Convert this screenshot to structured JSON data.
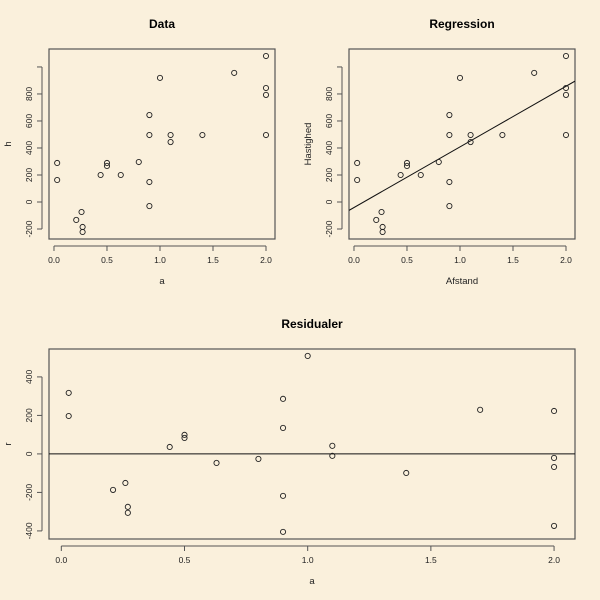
{
  "chart_data": [
    {
      "type": "scatter",
      "title": "Data",
      "xlabel": "a",
      "ylabel": "h",
      "xlim": [
        -0.047,
        2.085
      ],
      "ylim": [
        -274,
        1133
      ],
      "xticks": [
        0,
        0.5,
        1,
        1.5,
        2
      ],
      "xtick_labels": [
        "0.0",
        "0.5",
        "1.0",
        "1.5",
        "2.0"
      ],
      "yticks": [
        -200,
        0,
        200,
        400,
        600,
        800,
        1000
      ],
      "ytick_labels": [
        "-200",
        "0",
        "200",
        "400",
        "600",
        "800",
        ""
      ],
      "x": [
        0.03,
        0.03,
        0.26,
        0.21,
        0.27,
        0.27,
        0.44,
        0.5,
        0.5,
        0.63,
        0.8,
        0.9,
        0.9,
        0.9,
        0.9,
        1.0,
        1.1,
        1.1,
        1.4,
        1.7,
        2.0,
        2.0,
        2.0,
        2.0
      ],
      "y": [
        289,
        163,
        -74,
        -133,
        -185,
        -222,
        200,
        289,
        267,
        200,
        296,
        644,
        496,
        148,
        -30,
        919,
        496,
        444,
        496,
        956,
        1081,
        844,
        793,
        496
      ]
    },
    {
      "type": "scatter",
      "title": "Regression",
      "xlabel": "Afstand",
      "ylabel": "Hastighed",
      "xlim": [
        -0.047,
        2.085
      ],
      "ylim": [
        -274,
        1133
      ],
      "xticks": [
        0,
        0.5,
        1,
        1.5,
        2
      ],
      "xtick_labels": [
        "0.0",
        "0.5",
        "1.0",
        "1.5",
        "2.0"
      ],
      "yticks": [
        -200,
        0,
        200,
        400,
        600,
        800,
        1000
      ],
      "ytick_labels": [
        "-200",
        "0",
        "200",
        "400",
        "600",
        "800",
        ""
      ],
      "x": [
        0.03,
        0.03,
        0.26,
        0.21,
        0.27,
        0.27,
        0.44,
        0.5,
        0.5,
        0.63,
        0.8,
        0.9,
        0.9,
        0.9,
        0.9,
        1.0,
        1.1,
        1.1,
        1.4,
        1.7,
        2.0,
        2.0,
        2.0,
        2.0
      ],
      "y": [
        289,
        163,
        -74,
        -133,
        -185,
        -222,
        200,
        289,
        267,
        200,
        296,
        644,
        496,
        148,
        -30,
        919,
        496,
        444,
        496,
        956,
        1081,
        844,
        793,
        496
      ],
      "abline": {
        "intercept": -41,
        "slope": 449
      }
    },
    {
      "type": "scatter",
      "title": "Residualer",
      "xlabel": "a",
      "ylabel": "r",
      "xlim": [
        -0.05,
        2.085
      ],
      "ylim": [
        -442,
        545
      ],
      "xticks": [
        0,
        0.5,
        1,
        1.5,
        2
      ],
      "xtick_labels": [
        "0.0",
        "0.5",
        "1.0",
        "1.5",
        "2.0"
      ],
      "yticks": [
        -400,
        -200,
        0,
        200,
        400
      ],
      "ytick_labels": [
        "-400",
        "-200",
        "0",
        "200",
        "400"
      ],
      "x": [
        0.03,
        0.03,
        0.21,
        0.26,
        0.27,
        0.27,
        0.44,
        0.5,
        0.5,
        0.63,
        0.8,
        0.9,
        0.9,
        0.9,
        0.9,
        1.0,
        1.1,
        1.1,
        1.4,
        1.7,
        2.0,
        2.0,
        2.0,
        2.0
      ],
      "y": [
        317,
        197,
        -187,
        -151,
        -275,
        -306,
        36,
        99,
        83,
        -47,
        -26,
        286,
        135,
        -218,
        -405,
        509,
        42,
        -10,
        -99,
        229,
        223,
        -21,
        -68,
        -374
      ],
      "abline": {
        "intercept": 0,
        "slope": 0
      }
    }
  ]
}
